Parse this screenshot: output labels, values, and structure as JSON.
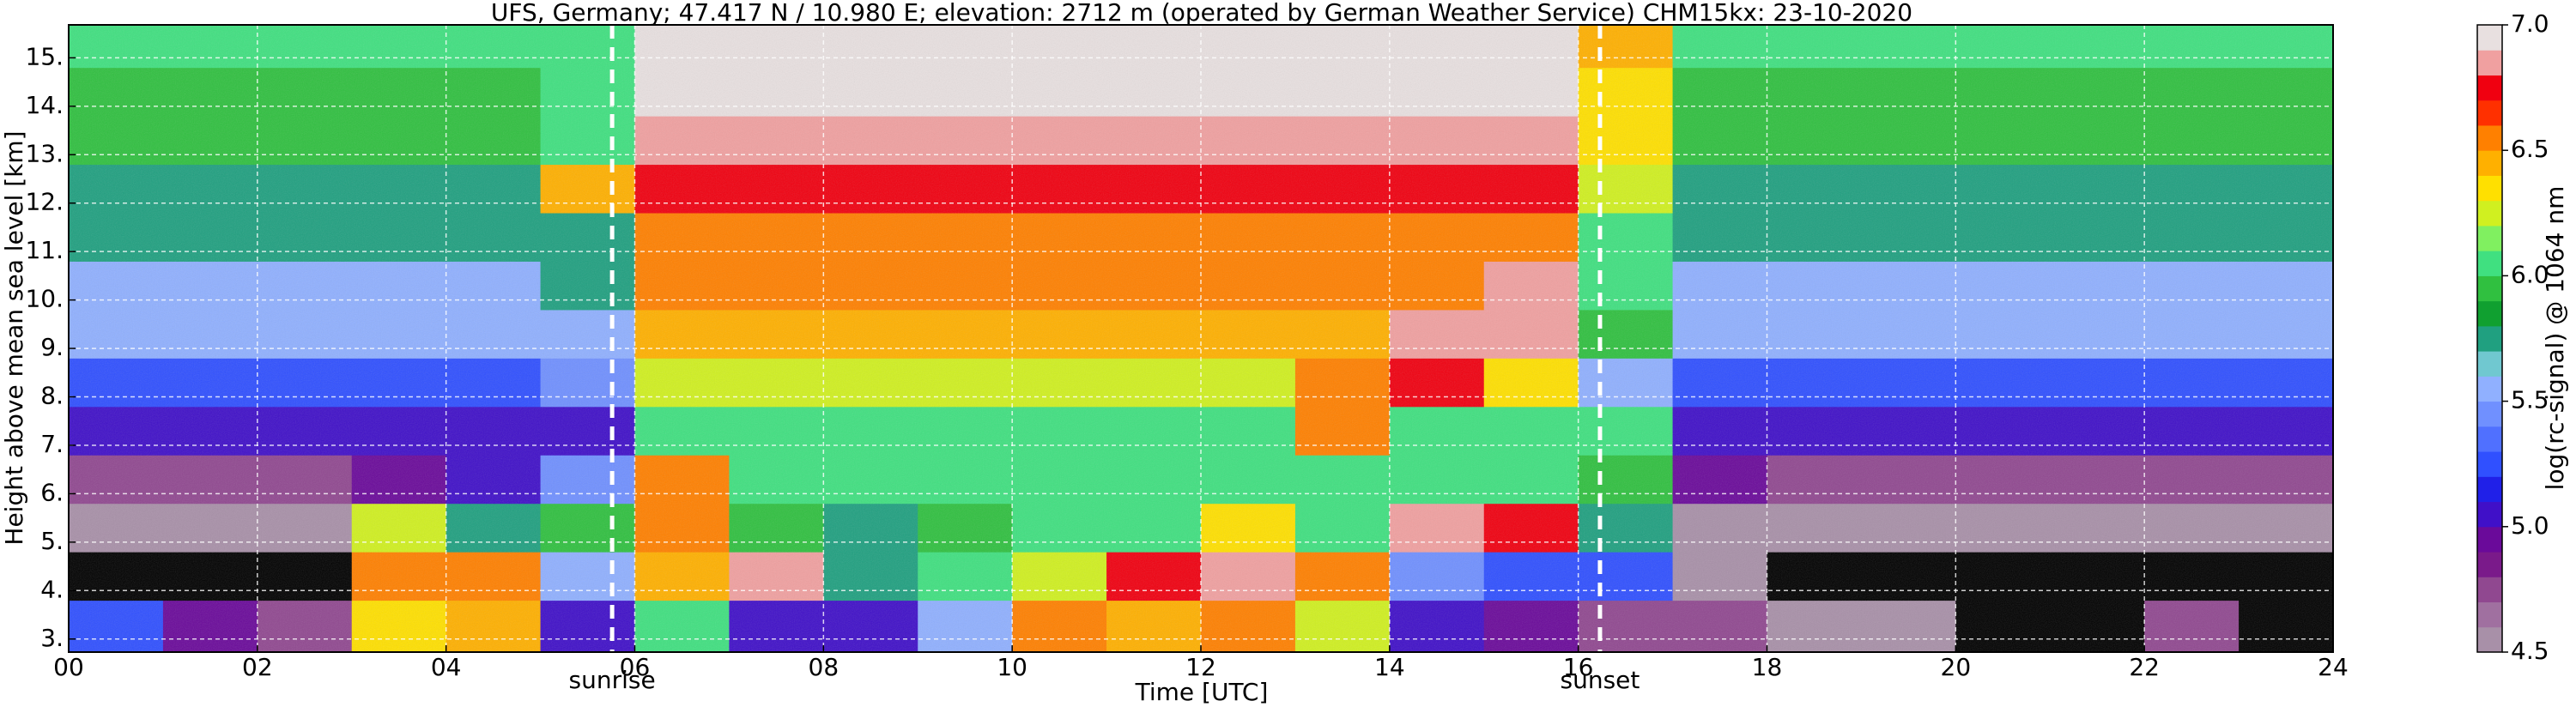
{
  "chart_data": {
    "type": "heatmap",
    "title": "UFS, Germany; 47.417 N / 10.980 E; elevation: 2712 m  (operated by German Weather Service)    CHM15kx: 23-10-2020",
    "xlabel": "Time [UTC]",
    "ylabel": "Height above mean sea level [km]",
    "colorbar_label": "log(rc-signal) @ 1064 nm",
    "xlim": [
      0,
      24
    ],
    "ylim": [
      2.73,
      15.68
    ],
    "xticks": [
      {
        "value": 0,
        "label": "00"
      },
      {
        "value": 2,
        "label": "02"
      },
      {
        "value": 4,
        "label": "04"
      },
      {
        "value": 6,
        "label": "06"
      },
      {
        "value": 8,
        "label": "08"
      },
      10,
      12,
      14,
      16,
      18,
      20,
      22,
      24
    ],
    "yticks": [
      {
        "value": 3,
        "label": "3."
      },
      {
        "value": 4,
        "label": "4."
      },
      {
        "value": 5,
        "label": "5."
      },
      {
        "value": 6,
        "label": "6."
      },
      {
        "value": 7,
        "label": "7."
      },
      {
        "value": 8,
        "label": "8."
      },
      {
        "value": 9,
        "label": "9."
      },
      {
        "value": 10,
        "label": "10."
      },
      {
        "value": 11,
        "label": "11."
      },
      {
        "value": 12,
        "label": "12."
      },
      {
        "value": 13,
        "label": "13."
      },
      {
        "value": 14,
        "label": "14."
      },
      {
        "value": 15,
        "label": "15."
      }
    ],
    "grid": true,
    "grid_color": "#ffffff",
    "x_edges": [
      0,
      1,
      2,
      3,
      4,
      5,
      6,
      7,
      8,
      9,
      10,
      11,
      12,
      13,
      14,
      15,
      16,
      17,
      18,
      19,
      20,
      21,
      22,
      23,
      24
    ],
    "y_edges": [
      2.73,
      3.8,
      4.8,
      5.8,
      6.8,
      7.8,
      8.8,
      9.8,
      10.8,
      11.8,
      12.8,
      13.8,
      14.8,
      15.68
    ],
    "values": [
      [
        5.2,
        4.9,
        4.8,
        6.3,
        6.4,
        5.0,
        6.0,
        5.0,
        5.0,
        5.6,
        6.6,
        6.4,
        6.5,
        6.2,
        5.0,
        4.9,
        4.8,
        4.7,
        4.6,
        4.5,
        4.4,
        4.4,
        4.8,
        4.4
      ],
      [
        4.2,
        4.2,
        4.2,
        6.5,
        6.6,
        5.5,
        6.4,
        6.8,
        5.8,
        6.0,
        6.2,
        6.7,
        6.8,
        6.6,
        5.4,
        5.3,
        5.2,
        4.6,
        4.3,
        4.2,
        4.2,
        4.2,
        4.2,
        4.2
      ],
      [
        4.5,
        4.5,
        4.5,
        6.2,
        5.8,
        5.9,
        6.6,
        5.9,
        5.8,
        5.9,
        6.0,
        6.0,
        6.3,
        6.0,
        6.8,
        6.7,
        5.8,
        4.6,
        4.6,
        4.5,
        4.5,
        4.5,
        4.5,
        4.5
      ],
      [
        4.8,
        4.8,
        4.8,
        4.9,
        5.0,
        5.4,
        6.5,
        6.0,
        6.0,
        6.0,
        6.1,
        6.0,
        6.0,
        6.1,
        6.0,
        6.0,
        5.9,
        4.9,
        4.8,
        4.8,
        4.8,
        4.8,
        4.8,
        4.8
      ],
      [
        5.1,
        5.1,
        5.1,
        5.1,
        5.1,
        5.1,
        6.0,
        6.1,
        6.1,
        6.1,
        6.1,
        6.1,
        6.1,
        6.6,
        6.1,
        6.1,
        6.0,
        5.1,
        5.1,
        5.1,
        5.1,
        5.1,
        5.1,
        5.1
      ],
      [
        5.3,
        5.3,
        5.3,
        5.3,
        5.3,
        5.4,
        6.2,
        6.2,
        6.2,
        6.2,
        6.2,
        6.2,
        6.2,
        6.6,
        6.7,
        6.3,
        5.6,
        5.3,
        5.3,
        5.3,
        5.3,
        5.3,
        5.3,
        5.3
      ],
      [
        5.5,
        5.5,
        5.5,
        5.5,
        5.5,
        5.6,
        6.4,
        6.4,
        6.4,
        6.4,
        6.4,
        6.4,
        6.4,
        6.4,
        6.8,
        6.8,
        5.9,
        5.5,
        5.5,
        5.5,
        5.5,
        5.5,
        5.5,
        5.5
      ],
      [
        5.6,
        5.6,
        5.6,
        5.6,
        5.6,
        5.7,
        6.5,
        6.5,
        6.5,
        6.5,
        6.5,
        6.5,
        6.5,
        6.5,
        6.5,
        6.8,
        6.0,
        5.6,
        5.6,
        5.6,
        5.6,
        5.6,
        5.6,
        5.6
      ],
      [
        5.7,
        5.7,
        5.7,
        5.7,
        5.7,
        5.8,
        6.6,
        6.6,
        6.6,
        6.6,
        6.6,
        6.6,
        6.6,
        6.6,
        6.6,
        6.6,
        6.1,
        5.7,
        5.7,
        5.7,
        5.7,
        5.7,
        5.7,
        5.7
      ],
      [
        5.8,
        5.8,
        5.8,
        5.8,
        5.8,
        6.4,
        6.7,
        6.7,
        6.7,
        6.7,
        6.7,
        6.7,
        6.7,
        6.7,
        6.7,
        6.7,
        6.2,
        5.8,
        5.8,
        5.8,
        5.8,
        5.8,
        5.8,
        5.8
      ],
      [
        5.9,
        5.9,
        5.9,
        5.9,
        5.9,
        6.0,
        6.8,
        6.8,
        6.8,
        6.8,
        6.8,
        6.8,
        6.8,
        6.8,
        6.8,
        6.8,
        6.3,
        5.9,
        5.9,
        5.9,
        5.9,
        5.9,
        5.9,
        5.9
      ],
      [
        5.9,
        5.9,
        5.9,
        5.9,
        5.9,
        6.0,
        6.9,
        6.9,
        6.9,
        6.9,
        6.9,
        6.9,
        6.9,
        6.9,
        6.9,
        6.9,
        6.3,
        5.9,
        5.9,
        5.9,
        5.9,
        5.9,
        5.9,
        5.9
      ],
      [
        6.0,
        6.0,
        6.0,
        6.0,
        6.0,
        6.1,
        6.9,
        6.9,
        6.9,
        6.9,
        6.9,
        6.9,
        6.9,
        6.9,
        6.9,
        6.9,
        6.4,
        6.0,
        6.0,
        6.0,
        6.0,
        6.0,
        6.0,
        6.0
      ]
    ],
    "clim": [
      4.5,
      7.0
    ],
    "cticks": [
      4.5,
      {
        "value": 5.0,
        "label": "5.0"
      },
      5.5,
      {
        "value": 6.0,
        "label": "6.0"
      },
      6.5,
      {
        "value": 7.0,
        "label": "7.0"
      }
    ],
    "colorscale": [
      "#a890a8",
      "#a070a0",
      "#904890",
      "#7a1a8a",
      "#6a0a9a",
      "#4010c8",
      "#2020e8",
      "#3050ff",
      "#5070ff",
      "#7090ff",
      "#90b0ff",
      "#70c8d0",
      "#20a080",
      "#10a030",
      "#30c040",
      "#40e080",
      "#80f060",
      "#d0f020",
      "#ffe000",
      "#ffb000",
      "#ff8000",
      "#ff3000",
      "#f00010",
      "#f0a0a0",
      "#e8e0e0"
    ],
    "under_color": "#000000",
    "annotations": [
      {
        "text": "sunrise",
        "x": 5.76
      },
      {
        "text": "sunset",
        "x": 16.23
      }
    ]
  }
}
